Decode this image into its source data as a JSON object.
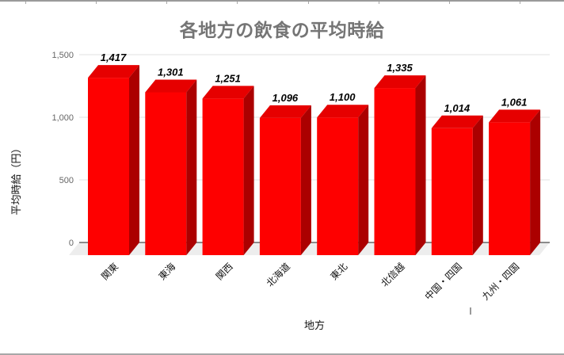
{
  "chart_data": {
    "type": "bar",
    "variant": "3d-column",
    "title": "各地方の飲食の平均時給",
    "xlabel": "地方",
    "ylabel": "平均時給（円）",
    "categories": [
      "関東",
      "東海",
      "関西",
      "北海道",
      "東北",
      "北信越",
      "中国・四国",
      "九州・四国"
    ],
    "values": [
      1417,
      1301,
      1251,
      1096,
      1100,
      1335,
      1014,
      1061
    ],
    "data_labels": [
      "1,417",
      "1,301",
      "1,251",
      "1,096",
      "1,100",
      "1,335",
      "1,014",
      "1,061"
    ],
    "yticks": [
      0,
      500,
      1000,
      1500
    ],
    "ytick_labels": [
      "0",
      "500",
      "1,000",
      "1,500"
    ],
    "ylim": [
      0,
      1500
    ],
    "grid": true,
    "legend": "none",
    "colors": {
      "bar_front": "#fe0000",
      "bar_top": "#e60000",
      "bar_side": "#ab0000",
      "grid": "#e0e0e0",
      "axis": "#222222",
      "floor": "#ededed",
      "title": "#757575",
      "tick_label": "#666666",
      "category_label": "#111111",
      "data_label": "#000000"
    }
  }
}
